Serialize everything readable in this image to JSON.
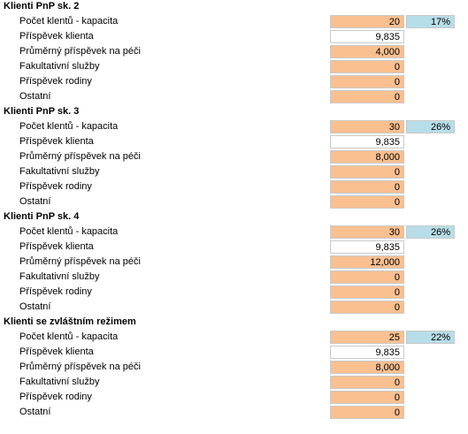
{
  "colors": {
    "input_orange": "#fac090",
    "input_white": "#ffffff",
    "percent_blue": "#b7dee8"
  },
  "labels": {
    "count": "Počet klentů - kapacita",
    "client_contribution": "Příspěvek klienta",
    "avg_care_contribution": "Průměrný příspěvek na péči",
    "optional_services": "Fakultativní služby",
    "family_contribution": "Příspěvek rodiny",
    "other": "Ostatní"
  },
  "sections": [
    {
      "title": "Klienti PnP sk. 2",
      "count": "20",
      "percent": "17%",
      "client_contribution": "9,835",
      "avg_care_contribution": "4,000",
      "optional_services": "0",
      "family_contribution": "0",
      "other": "0"
    },
    {
      "title": "Klienti PnP sk. 3",
      "count": "30",
      "percent": "26%",
      "client_contribution": "9,835",
      "avg_care_contribution": "8,000",
      "optional_services": "0",
      "family_contribution": "0",
      "other": "0"
    },
    {
      "title": "Klienti PnP sk. 4",
      "count": "30",
      "percent": "26%",
      "client_contribution": "9,835",
      "avg_care_contribution": "12,000",
      "optional_services": "0",
      "family_contribution": "0",
      "other": "0"
    },
    {
      "title": "Klienti se zvláštním režimem",
      "count": "25",
      "percent": "22%",
      "client_contribution": "9,835",
      "avg_care_contribution": "8,000",
      "optional_services": "0",
      "family_contribution": "0",
      "other": "0"
    }
  ]
}
